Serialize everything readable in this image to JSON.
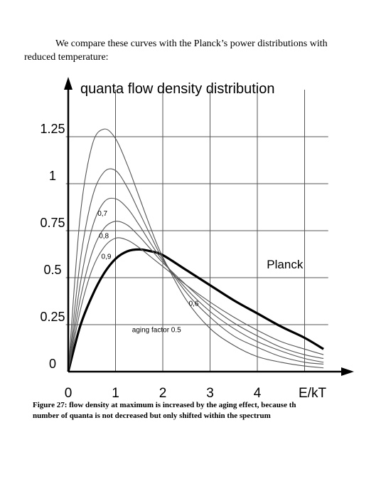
{
  "intro_text": {
    "line1": "We compare these curves with the Planck’s power distributions with",
    "line2": "reduced temperature:"
  },
  "figure": {
    "caption_line1": "Figure 27: flow density at maximum is increased by the aging effect, because th",
    "caption_line2": "number of quanta is not decreased but only shifted within the spectrum"
  },
  "colors": {
    "ink": "#000000",
    "grid": "#555555",
    "curve": "#555555"
  },
  "chart_data": {
    "type": "line",
    "title": "quanta flow density distribution",
    "xlabel": "E/kT",
    "ylabel": "",
    "x_ticks": [
      "0",
      "1",
      "2",
      "3",
      "4"
    ],
    "y_ticks": [
      "0",
      "0.25",
      "0.5",
      "0.75",
      "1",
      "1.25"
    ],
    "y_tick_values": [
      0,
      0.25,
      0.5,
      0.75,
      1,
      1.25
    ],
    "xlim": [
      0,
      5.5
    ],
    "ylim": [
      0,
      1.5
    ],
    "grid": true,
    "series": [
      {
        "name": "Planck",
        "label": "Planck",
        "bold": true,
        "x": [
          0,
          0.25,
          0.5,
          0.75,
          1,
          1.25,
          1.5,
          1.75,
          2,
          2.5,
          3,
          3.5,
          4,
          4.5,
          5,
          5.4
        ],
        "y": [
          0,
          0.24,
          0.4,
          0.52,
          0.6,
          0.64,
          0.65,
          0.64,
          0.62,
          0.54,
          0.46,
          0.38,
          0.31,
          0.24,
          0.18,
          0.12
        ]
      },
      {
        "name": "0,9",
        "label": "0,9",
        "x": [
          0,
          0.25,
          0.5,
          0.75,
          1,
          1.25,
          1.5,
          1.75,
          2,
          2.5,
          3,
          3.5,
          4,
          4.5,
          5,
          5.4
        ],
        "y": [
          0,
          0.32,
          0.54,
          0.66,
          0.71,
          0.7,
          0.66,
          0.61,
          0.56,
          0.46,
          0.37,
          0.29,
          0.22,
          0.16,
          0.12,
          0.09
        ]
      },
      {
        "name": "0,8",
        "label": "0,8",
        "x": [
          0,
          0.25,
          0.5,
          0.75,
          1,
          1.25,
          1.5,
          1.75,
          2,
          2.5,
          3,
          3.5,
          4,
          4.5,
          5,
          5.4
        ],
        "y": [
          0,
          0.38,
          0.63,
          0.76,
          0.8,
          0.78,
          0.72,
          0.65,
          0.58,
          0.46,
          0.35,
          0.26,
          0.19,
          0.13,
          0.09,
          0.07
        ]
      },
      {
        "name": "0,7",
        "label": "0,7",
        "x": [
          0,
          0.25,
          0.5,
          0.75,
          1,
          1.25,
          1.5,
          1.75,
          2,
          2.5,
          3,
          3.5,
          4,
          4.5,
          5,
          5.4
        ],
        "y": [
          0,
          0.46,
          0.76,
          0.9,
          0.92,
          0.87,
          0.78,
          0.68,
          0.59,
          0.44,
          0.32,
          0.23,
          0.16,
          0.11,
          0.07,
          0.05
        ]
      },
      {
        "name": "0,6",
        "label": "0,6",
        "x": [
          0,
          0.25,
          0.5,
          0.75,
          1,
          1.25,
          1.5,
          1.75,
          2,
          2.5,
          3,
          3.5,
          4,
          4.5,
          5,
          5.4
        ],
        "y": [
          0,
          0.58,
          0.92,
          1.06,
          1.07,
          0.98,
          0.85,
          0.72,
          0.6,
          0.42,
          0.29,
          0.19,
          0.13,
          0.08,
          0.05,
          0.04
        ]
      },
      {
        "name": "aging factor 0.5",
        "label": "aging factor 0.5",
        "x": [
          0,
          0.25,
          0.5,
          0.75,
          1,
          1.25,
          1.5,
          1.75,
          2,
          2.5,
          3,
          3.5,
          4,
          4.5,
          5,
          5.4
        ],
        "y": [
          0,
          0.82,
          1.2,
          1.29,
          1.24,
          1.1,
          0.93,
          0.76,
          0.61,
          0.38,
          0.23,
          0.14,
          0.08,
          0.05,
          0.03,
          0.02
        ]
      }
    ]
  }
}
